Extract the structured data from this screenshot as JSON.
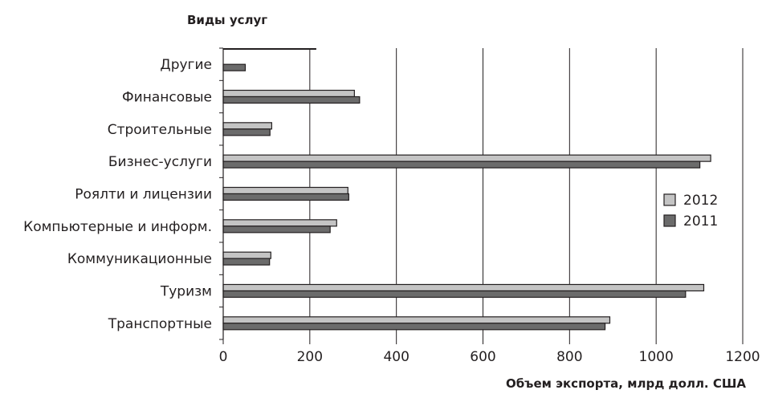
{
  "chart_data": {
    "type": "bar",
    "orientation": "horizontal",
    "ylabel": "Виды услуг",
    "xlabel": "Объем экспорта, млрд долл. США",
    "categories": [
      "Транспортные",
      "Туризм",
      "Коммуникационные",
      "Компьютерные и информ.",
      "Роялти и лицензии",
      "Бизнес-услуги",
      "Строительные",
      "Финансовые",
      "Другие"
    ],
    "series": [
      {
        "name": "2012",
        "color": "#c4c4c4",
        "values": [
          893,
          1110,
          110,
          262,
          288,
          1126,
          112,
          303,
          215
        ]
      },
      {
        "name": "2011",
        "color": "#6b6b6b",
        "values": [
          882,
          1068,
          107,
          247,
          290,
          1101,
          108,
          315,
          51
        ]
      }
    ],
    "xlim": [
      0,
      1200
    ],
    "xticks": [
      "0",
      "200",
      "400",
      "600",
      "800",
      "1000",
      "1200"
    ],
    "grid": "vertical",
    "legend": "right"
  }
}
